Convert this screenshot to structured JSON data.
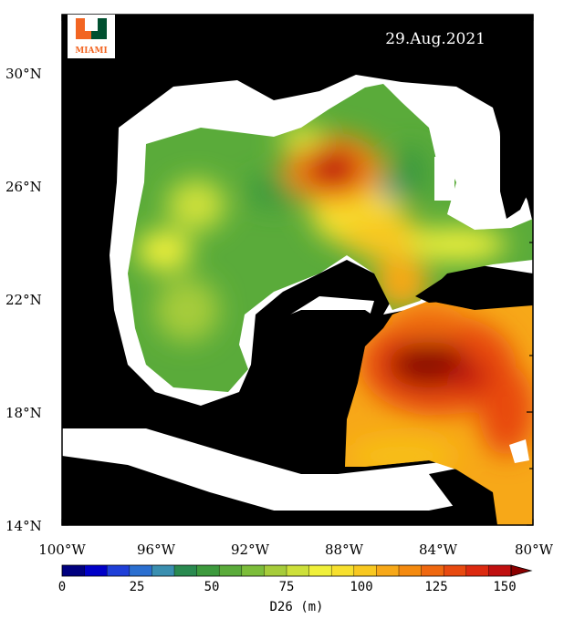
{
  "map": {
    "date": "29.Aug.2021",
    "logo": {
      "letter": "U",
      "text": "MIAMI",
      "colors": {
        "orange": "#f26522",
        "green": "#005030"
      }
    },
    "lat_ticks": [
      "30°N",
      "26°N",
      "22°N",
      "18°N",
      "14°N"
    ],
    "lon_ticks": [
      "100°W",
      "96°W",
      "92°W",
      "88°W",
      "84°W",
      "80°W"
    ],
    "extent": {
      "lon": [
        -100,
        -80
      ],
      "lat": [
        14,
        32
      ]
    },
    "colors": {
      "land": "#000000",
      "no_data": "#ffffff"
    }
  },
  "colorbar": {
    "title": "D26 (m)",
    "ticks": [
      "0",
      "25",
      "50",
      "75",
      "100",
      "125",
      "150"
    ],
    "range": [
      0,
      150
    ],
    "colors": [
      "#00007f",
      "#0000c8",
      "#1f3fd8",
      "#2b6fd0",
      "#3a8fb0",
      "#2a8a50",
      "#3d9a3d",
      "#5aab3a",
      "#7cbd3a",
      "#a6cc3a",
      "#cde03a",
      "#f0f03a",
      "#f7e02e",
      "#f8c820",
      "#f7a818",
      "#f48a10",
      "#ef6810",
      "#e84a10",
      "#dc2a10",
      "#c01010",
      "#8a0000"
    ]
  }
}
